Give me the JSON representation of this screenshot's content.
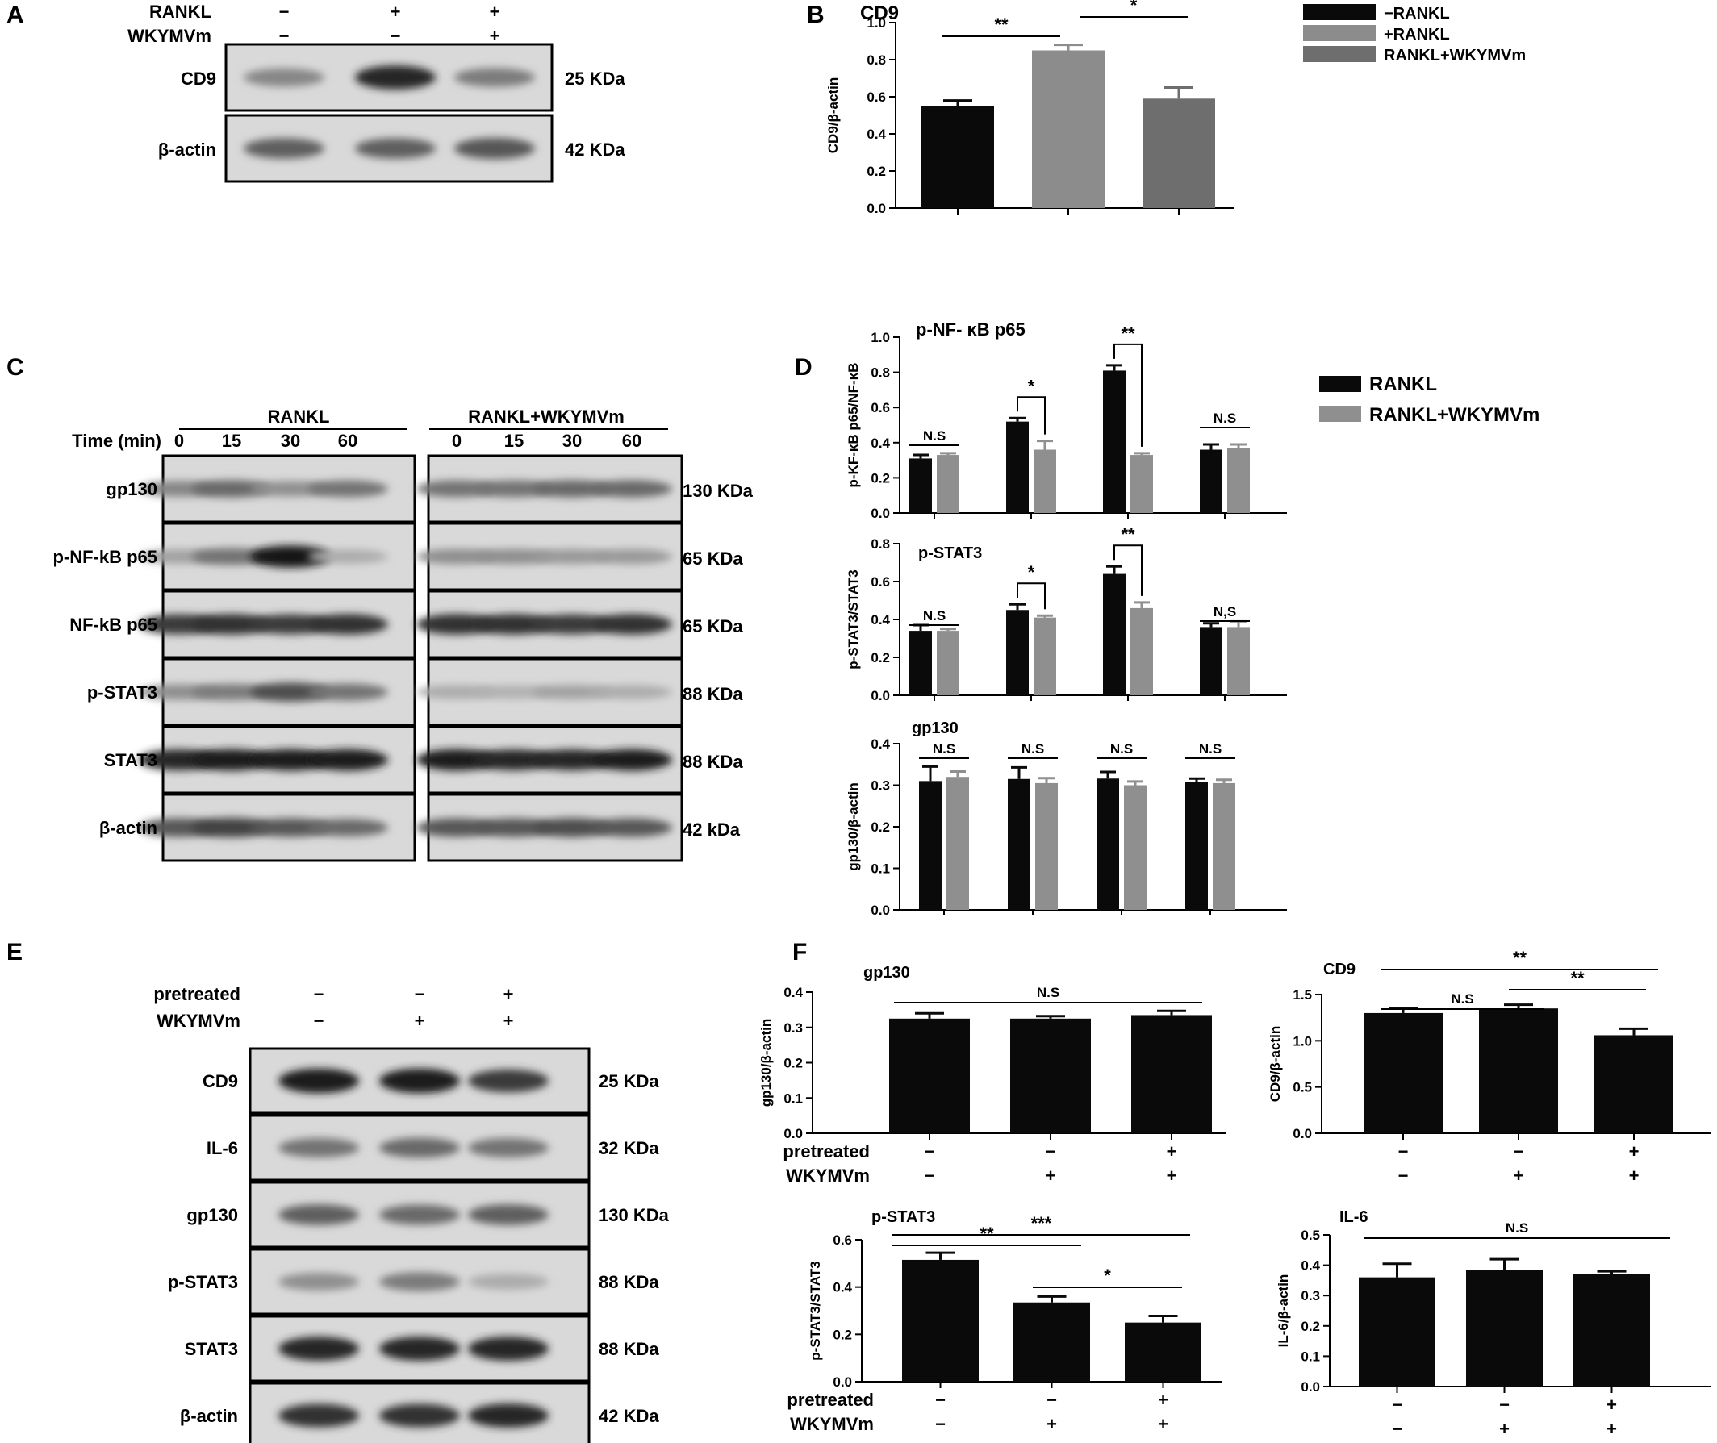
{
  "colors": {
    "black": "#0a0a0a",
    "light": "#8c8c8c",
    "mid": "#6e6e6e",
    "gray_d": "#8f8f8f"
  },
  "panels": {
    "A": {
      "label": "A",
      "conditions": [
        {
          "name": "RANKL",
          "signs": [
            "−",
            "+",
            "+"
          ]
        },
        {
          "name": "WKYMVm",
          "signs": [
            "−",
            "−",
            "+"
          ]
        }
      ],
      "bands": [
        {
          "protein": "CD9",
          "mw": "25 KDa",
          "intensity": [
            0.35,
            0.85,
            0.4
          ]
        },
        {
          "protein": "β-actin",
          "mw": "42 KDa",
          "intensity": [
            0.55,
            0.55,
            0.6
          ]
        }
      ]
    },
    "B": {
      "label": "B"
    },
    "C": {
      "label": "C",
      "groups": [
        "RANKL",
        "RANKL+WKYMVm"
      ],
      "time_label": "Time (min)",
      "times": [
        "0",
        "15",
        "30",
        "60",
        "0",
        "15",
        "30",
        "60"
      ],
      "bands": [
        {
          "protein": "gp130",
          "mw": "130 KDa",
          "intensity": [
            0.35,
            0.5,
            0.3,
            0.45,
            0.45,
            0.45,
            0.5,
            0.5
          ]
        },
        {
          "protein": "p-NF-kB p65",
          "mw": "65 KDa",
          "intensity": [
            0.2,
            0.45,
            0.95,
            0.15,
            0.3,
            0.3,
            0.25,
            0.25
          ]
        },
        {
          "protein": "NF-kB p65",
          "mw": "65 KDa",
          "intensity": [
            0.75,
            0.8,
            0.75,
            0.8,
            0.8,
            0.8,
            0.75,
            0.8
          ]
        },
        {
          "protein": "p-STAT3",
          "mw": "88 KDa",
          "intensity": [
            0.3,
            0.4,
            0.65,
            0.45,
            0.15,
            0.12,
            0.2,
            0.15
          ]
        },
        {
          "protein": "STAT3",
          "mw": "88 KDa",
          "intensity": [
            0.85,
            0.9,
            0.9,
            0.9,
            0.9,
            0.85,
            0.85,
            0.9
          ]
        },
        {
          "protein": "β-actin",
          "mw": "42 kDa",
          "intensity": [
            0.6,
            0.7,
            0.6,
            0.5,
            0.6,
            0.6,
            0.65,
            0.6
          ]
        }
      ]
    },
    "D": {
      "label": "D"
    },
    "E": {
      "label": "E",
      "conditions": [
        {
          "name": "pretreated",
          "signs": [
            "−",
            "−",
            "+"
          ]
        },
        {
          "name": "WKYMVm",
          "signs": [
            "−",
            "+",
            "+"
          ]
        }
      ],
      "bands": [
        {
          "protein": "CD9",
          "mw": "25 KDa",
          "intensity": [
            0.9,
            0.9,
            0.75
          ]
        },
        {
          "protein": "IL-6",
          "mw": "32 KDa",
          "intensity": [
            0.45,
            0.5,
            0.45
          ]
        },
        {
          "protein": "gp130",
          "mw": "130 KDa",
          "intensity": [
            0.55,
            0.5,
            0.55
          ]
        },
        {
          "protein": "p-STAT3",
          "mw": "88 KDa",
          "intensity": [
            0.3,
            0.4,
            0.15
          ]
        },
        {
          "protein": "STAT3",
          "mw": "88 KDa",
          "intensity": [
            0.85,
            0.85,
            0.85
          ]
        },
        {
          "protein": "β-actin",
          "mw": "42 KDa",
          "intensity": [
            0.8,
            0.8,
            0.85
          ]
        }
      ]
    },
    "F": {
      "label": "F"
    }
  },
  "chart_data": [
    {
      "id": "B",
      "type": "bar",
      "title": "CD9",
      "ylabel": "CD9/β-actin",
      "ylim": [
        0,
        1.0
      ],
      "yticks": [
        "0.0",
        "0.2",
        "0.4",
        "0.6",
        "0.8",
        "1.0"
      ],
      "categories": [
        "−RANKL",
        "+RANKL",
        "RANKL+WKYMVm"
      ],
      "values": [
        0.55,
        0.85,
        0.59
      ],
      "errors": [
        0.03,
        0.03,
        0.06
      ],
      "colors": [
        "#0a0a0a",
        "#8c8c8c",
        "#6e6e6e"
      ],
      "legend": [
        "−RANKL",
        "+RANKL",
        "RANKL+WKYMVm"
      ],
      "legend_placement": "right",
      "annotations": [
        {
          "from": 0,
          "to": 1,
          "text": "**"
        },
        {
          "from": 1,
          "to": 2,
          "text": "*"
        }
      ]
    },
    {
      "id": "D1",
      "type": "bar",
      "title": "p-NF- κB p65",
      "ylabel": "p-KF-κB p65/NF-κB",
      "ylim": [
        0,
        1.0
      ],
      "yticks": [
        "0.0",
        "0.2",
        "0.4",
        "0.6",
        "0.8",
        "1.0"
      ],
      "series": [
        {
          "name": "RANKL",
          "values": [
            0.31,
            0.52,
            0.81,
            0.36
          ],
          "errors": [
            0.02,
            0.02,
            0.03,
            0.03
          ]
        },
        {
          "name": "RANKL+WKYMVm",
          "values": [
            0.33,
            0.36,
            0.33,
            0.37
          ],
          "errors": [
            0.01,
            0.05,
            0.01,
            0.02
          ]
        }
      ],
      "annotations": [
        "N.S",
        "*",
        "**",
        "N.S"
      ],
      "legend": [
        "RANKL",
        "RANKL+WKYMVm"
      ],
      "legend_placement": "right"
    },
    {
      "id": "D2",
      "type": "bar",
      "title": "p-STAT3",
      "ylabel": "p-STAT3/STAT3",
      "ylim": [
        0,
        0.8
      ],
      "yticks": [
        "0.0",
        "0.2",
        "0.4",
        "0.6",
        "0.8"
      ],
      "series": [
        {
          "name": "RANKL",
          "values": [
            0.34,
            0.45,
            0.64,
            0.36
          ],
          "errors": [
            0.03,
            0.03,
            0.04,
            0.02
          ]
        },
        {
          "name": "RANKL+WKYMVm",
          "values": [
            0.34,
            0.41,
            0.46,
            0.36
          ],
          "errors": [
            0.01,
            0.01,
            0.03,
            0.03
          ]
        }
      ],
      "annotations": [
        "N.S",
        "*",
        "**",
        "N,S"
      ]
    },
    {
      "id": "D3",
      "type": "bar",
      "title": "gp130",
      "ylabel": "gp130/β-actin",
      "ylim": [
        0,
        0.4
      ],
      "yticks": [
        "0.0",
        "0.1",
        "0.2",
        "0.3",
        "0.4"
      ],
      "series": [
        {
          "name": "RANKL",
          "values": [
            0.31,
            0.315,
            0.316,
            0.308
          ],
          "errors": [
            0.035,
            0.028,
            0.016,
            0.008
          ]
        },
        {
          "name": "RANKL+WKYMVm",
          "values": [
            0.32,
            0.305,
            0.3,
            0.305
          ],
          "errors": [
            0.013,
            0.012,
            0.009,
            0.008
          ]
        }
      ],
      "annotations": [
        "N.S",
        "N.S",
        "N.S",
        "N.S"
      ]
    },
    {
      "id": "F1",
      "type": "bar",
      "title": "gp130",
      "ylabel": "gp130/β-actin",
      "ylim": [
        0,
        0.4
      ],
      "yticks": [
        "0.0",
        "0.1",
        "0.2",
        "0.3",
        "0.4"
      ],
      "values": [
        0.325,
        0.325,
        0.335
      ],
      "errors": [
        0.015,
        0.007,
        0.012
      ],
      "conditions": [
        {
          "name": "pretreated",
          "signs": [
            "−",
            "−",
            "+"
          ]
        },
        {
          "name": "WKYMVm",
          "signs": [
            "−",
            "+",
            "+"
          ]
        }
      ],
      "annotations": [
        {
          "from": 0,
          "to": 2,
          "text": "N.S"
        }
      ]
    },
    {
      "id": "F2",
      "type": "bar",
      "title": "CD9",
      "ylabel": "CD9/β-actin",
      "ylim": [
        0,
        1.5
      ],
      "yticks": [
        "0.0",
        "0.5",
        "1.0",
        "1.5"
      ],
      "values": [
        1.3,
        1.35,
        1.06
      ],
      "errors": [
        0.05,
        0.04,
        0.07
      ],
      "conditions": [
        {
          "name": "pretreated",
          "signs": [
            "−",
            "−",
            "+"
          ]
        },
        {
          "name": "WKYMVm",
          "signs": [
            "−",
            "+",
            "+"
          ]
        }
      ],
      "annotations": [
        {
          "from": 0,
          "to": 2,
          "text": "**"
        },
        {
          "from": 0,
          "to": 1,
          "text": "N.S"
        },
        {
          "from": 1,
          "to": 2,
          "text": "**"
        }
      ]
    },
    {
      "id": "F3",
      "type": "bar",
      "title": "p-STAT3",
      "ylabel": "p-STAT3/STAT3",
      "ylim": [
        0,
        0.6
      ],
      "yticks": [
        "0.0",
        "0.2",
        "0.4",
        "0.6"
      ],
      "values": [
        0.515,
        0.335,
        0.25
      ],
      "errors": [
        0.03,
        0.025,
        0.028
      ],
      "conditions": [
        {
          "name": "pretreated",
          "signs": [
            "−",
            "−",
            "+"
          ]
        },
        {
          "name": "WKYMVm",
          "signs": [
            "−",
            "+",
            "+"
          ]
        }
      ],
      "annotations": [
        {
          "from": 0,
          "to": 1,
          "text": "**"
        },
        {
          "from": 0,
          "to": 2,
          "text": "***"
        },
        {
          "from": 1,
          "to": 2,
          "text": "*"
        }
      ]
    },
    {
      "id": "F4",
      "type": "bar",
      "title": "IL-6",
      "ylabel": "IL-6/β-actin",
      "ylim": [
        0,
        0.5
      ],
      "yticks": [
        "0.0",
        "0.1",
        "0.2",
        "0.3",
        "0.4",
        "0.5"
      ],
      "values": [
        0.36,
        0.385,
        0.37
      ],
      "errors": [
        0.045,
        0.035,
        0.01
      ],
      "conditions": [
        {
          "name": "pretreated",
          "signs": [
            "−",
            "−",
            "+"
          ]
        },
        {
          "name": "WKYMVm",
          "signs": [
            "−",
            "+",
            "+"
          ]
        }
      ],
      "annotations": [
        {
          "from": 0,
          "to": 2,
          "text": "N.S"
        }
      ]
    }
  ]
}
